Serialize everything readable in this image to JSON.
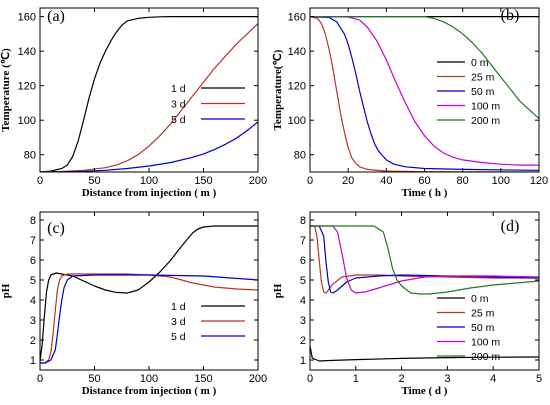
{
  "chart_data": [
    {
      "panel": "(a)",
      "type": "line",
      "xlabel": "Distance from injection ( m )",
      "ylabel": "Temperature (℃)",
      "xlim": [
        0,
        200
      ],
      "ylim": [
        70,
        165
      ],
      "xticks": [
        0,
        50,
        100,
        150,
        200
      ],
      "yticks": [
        80,
        100,
        120,
        140,
        160
      ],
      "legend_position": "right",
      "series": [
        {
          "name": "1 d",
          "color": "#000000",
          "x": [
            0,
            10,
            20,
            25,
            30,
            35,
            40,
            45,
            50,
            55,
            60,
            65,
            70,
            75,
            80,
            90,
            100,
            110,
            120,
            140,
            160,
            180,
            200
          ],
          "y": [
            70,
            70.5,
            72,
            74,
            79,
            88,
            100,
            113,
            124,
            133,
            140,
            146,
            151,
            155,
            157.5,
            159,
            159.6,
            159.9,
            160,
            160,
            160,
            160,
            160
          ]
        },
        {
          "name": "3 d",
          "color": "#b5352b",
          "x": [
            0,
            20,
            40,
            60,
            70,
            80,
            90,
            100,
            110,
            120,
            130,
            140,
            150,
            160,
            170,
            180,
            190,
            200
          ],
          "y": [
            70,
            70.3,
            71,
            72.5,
            74,
            76.5,
            80,
            85,
            91,
            98,
            106,
            114,
            122,
            130,
            137,
            144,
            150,
            156
          ]
        },
        {
          "name": "5 d",
          "color": "#0000cc",
          "x": [
            0,
            20,
            40,
            60,
            80,
            100,
            120,
            140,
            150,
            160,
            170,
            180,
            190,
            200
          ],
          "y": [
            70,
            70.1,
            70.4,
            71,
            72,
            73.5,
            75.5,
            78.5,
            80.5,
            83,
            86,
            89.5,
            94,
            99
          ]
        }
      ]
    },
    {
      "panel": "(b)",
      "type": "line",
      "xlabel": "Time ( h )",
      "ylabel": "Temperature(℃)",
      "xlim": [
        0,
        120
      ],
      "ylim": [
        70,
        165
      ],
      "xticks": [
        0,
        20,
        40,
        60,
        80,
        100,
        120
      ],
      "yticks": [
        80,
        100,
        120,
        140,
        160
      ],
      "legend_position": "right",
      "series": [
        {
          "name": "0 m",
          "color": "#000000",
          "x": [
            0,
            20,
            40,
            60,
            80,
            100,
            120
          ],
          "y": [
            160,
            160,
            160,
            160,
            160,
            160,
            160
          ]
        },
        {
          "name": "25 m",
          "color": "#b5352b",
          "x": [
            0,
            4,
            6,
            8,
            10,
            12,
            14,
            16,
            18,
            20,
            22,
            24,
            26,
            30,
            40,
            60,
            90,
            120
          ],
          "y": [
            160,
            159,
            156,
            150,
            141,
            130,
            117,
            104,
            93,
            84,
            78,
            75,
            73,
            71.5,
            70.5,
            70.2,
            70.1,
            70
          ]
        },
        {
          "name": "50 m",
          "color": "#0000cc",
          "x": [
            0,
            10,
            14,
            18,
            20,
            22,
            24,
            26,
            28,
            30,
            32,
            34,
            36,
            40,
            44,
            50,
            60,
            80,
            120
          ],
          "y": [
            160,
            159.5,
            157,
            150,
            144,
            136,
            127,
            117,
            108,
            99,
            92,
            86,
            82,
            77,
            74.5,
            73,
            72,
            71.5,
            71
          ]
        },
        {
          "name": "100 m",
          "color": "#cc00cc",
          "x": [
            0,
            20,
            26,
            30,
            35,
            40,
            45,
            50,
            55,
            60,
            65,
            70,
            75,
            80,
            90,
            100,
            110,
            120
          ],
          "y": [
            160,
            159.8,
            158,
            154,
            146,
            135,
            122,
            110,
            99,
            91,
            85,
            81,
            78.5,
            77,
            75.5,
            74.5,
            74,
            74
          ]
        },
        {
          "name": "200 m",
          "color": "#1f7a1f",
          "x": [
            0,
            40,
            60,
            65,
            70,
            75,
            80,
            85,
            90,
            95,
            100,
            105,
            110,
            115,
            120
          ],
          "y": [
            160,
            160,
            160,
            159,
            157,
            154,
            150,
            145,
            139,
            132,
            125,
            118,
            111,
            106,
            101
          ]
        }
      ]
    },
    {
      "panel": "(c)",
      "type": "line",
      "xlabel": "Distance from injection ( m )",
      "ylabel": "pH",
      "xlim": [
        0,
        200
      ],
      "ylim": [
        0.5,
        8.4
      ],
      "xticks": [
        0,
        50,
        100,
        150,
        200
      ],
      "yticks": [
        1,
        2,
        3,
        4,
        5,
        6,
        7,
        8
      ],
      "legend_position": "bottom-right",
      "series": [
        {
          "name": "1 d",
          "color": "#000000",
          "x": [
            0,
            2,
            4,
            6,
            8,
            10,
            15,
            20,
            30,
            40,
            50,
            60,
            70,
            80,
            90,
            100,
            110,
            120,
            130,
            140,
            145,
            150,
            160,
            180,
            200
          ],
          "y": [
            0.95,
            1.8,
            3.2,
            4.4,
            5.0,
            5.25,
            5.35,
            5.3,
            5.2,
            4.95,
            4.7,
            4.5,
            4.38,
            4.35,
            4.5,
            4.9,
            5.4,
            6.0,
            6.7,
            7.35,
            7.55,
            7.65,
            7.7,
            7.7,
            7.7
          ]
        },
        {
          "name": "3 d",
          "color": "#b5352b",
          "x": [
            0,
            4,
            8,
            10,
            12,
            14,
            16,
            18,
            20,
            25,
            30,
            50,
            80,
            100,
            120,
            130,
            140,
            160,
            180,
            200
          ],
          "y": [
            0.85,
            0.85,
            1.0,
            1.4,
            2.3,
            3.5,
            4.5,
            5.0,
            5.2,
            5.3,
            5.3,
            5.3,
            5.3,
            5.25,
            5.15,
            5.0,
            4.85,
            4.65,
            4.55,
            4.5
          ]
        },
        {
          "name": "5 d",
          "color": "#0000cc",
          "x": [
            0,
            5,
            10,
            14,
            16,
            18,
            20,
            22,
            25,
            30,
            50,
            100,
            150,
            200
          ],
          "y": [
            0.85,
            0.85,
            1.0,
            1.5,
            2.3,
            3.2,
            4.0,
            4.6,
            5.0,
            5.2,
            5.25,
            5.25,
            5.2,
            5.0
          ]
        }
      ]
    },
    {
      "panel": "(d)",
      "type": "line",
      "xlabel": "Time ( d )",
      "ylabel": "pH",
      "xlim": [
        0,
        5
      ],
      "ylim": [
        0.5,
        8.4
      ],
      "xticks": [
        0,
        1,
        2,
        3,
        4,
        5
      ],
      "yticks": [
        1,
        2,
        3,
        4,
        5,
        6,
        7,
        8
      ],
      "legend_position": "bottom-right",
      "series": [
        {
          "name": "0 m",
          "color": "#000000",
          "x": [
            0,
            0.05,
            0.2,
            0.5,
            1,
            2,
            3,
            4,
            5
          ],
          "y": [
            1.7,
            1.1,
            0.95,
            0.98,
            1.02,
            1.08,
            1.12,
            1.14,
            1.15
          ]
        },
        {
          "name": "25 m",
          "color": "#b5352b",
          "x": [
            0,
            0.1,
            0.15,
            0.2,
            0.25,
            0.3,
            0.35,
            0.4,
            0.5,
            0.7,
            1,
            1.5,
            2,
            3,
            4,
            5
          ],
          "y": [
            7.7,
            7.7,
            7.2,
            6.0,
            4.9,
            4.4,
            4.35,
            4.5,
            4.8,
            5.15,
            5.25,
            5.25,
            5.2,
            5.15,
            5.1,
            5.1
          ]
        },
        {
          "name": "50 m",
          "color": "#0000cc",
          "x": [
            0,
            0.2,
            0.3,
            0.35,
            0.4,
            0.45,
            0.5,
            0.6,
            0.8,
            1,
            1.5,
            2,
            3,
            4,
            5
          ],
          "y": [
            7.7,
            7.7,
            7.2,
            5.9,
            4.9,
            4.4,
            4.35,
            4.5,
            4.9,
            5.1,
            5.2,
            5.25,
            5.2,
            5.15,
            5.1
          ]
        },
        {
          "name": "100 m",
          "color": "#cc00cc",
          "x": [
            0,
            0.5,
            0.6,
            0.7,
            0.8,
            0.9,
            1,
            1.2,
            1.5,
            2,
            2.5,
            3,
            4,
            5
          ],
          "y": [
            7.7,
            7.7,
            7.4,
            6.3,
            5.1,
            4.5,
            4.35,
            4.4,
            4.6,
            4.95,
            5.15,
            5.2,
            5.2,
            5.15
          ]
        },
        {
          "name": "200 m",
          "color": "#1f7a1f",
          "x": [
            0,
            1.4,
            1.6,
            1.7,
            1.8,
            1.9,
            2,
            2.2,
            2.4,
            2.6,
            3,
            3.5,
            4,
            4.5,
            5
          ],
          "y": [
            7.7,
            7.7,
            7.4,
            6.6,
            5.6,
            5.0,
            4.7,
            4.35,
            4.3,
            4.3,
            4.4,
            4.6,
            4.75,
            4.85,
            4.95
          ]
        }
      ]
    }
  ]
}
